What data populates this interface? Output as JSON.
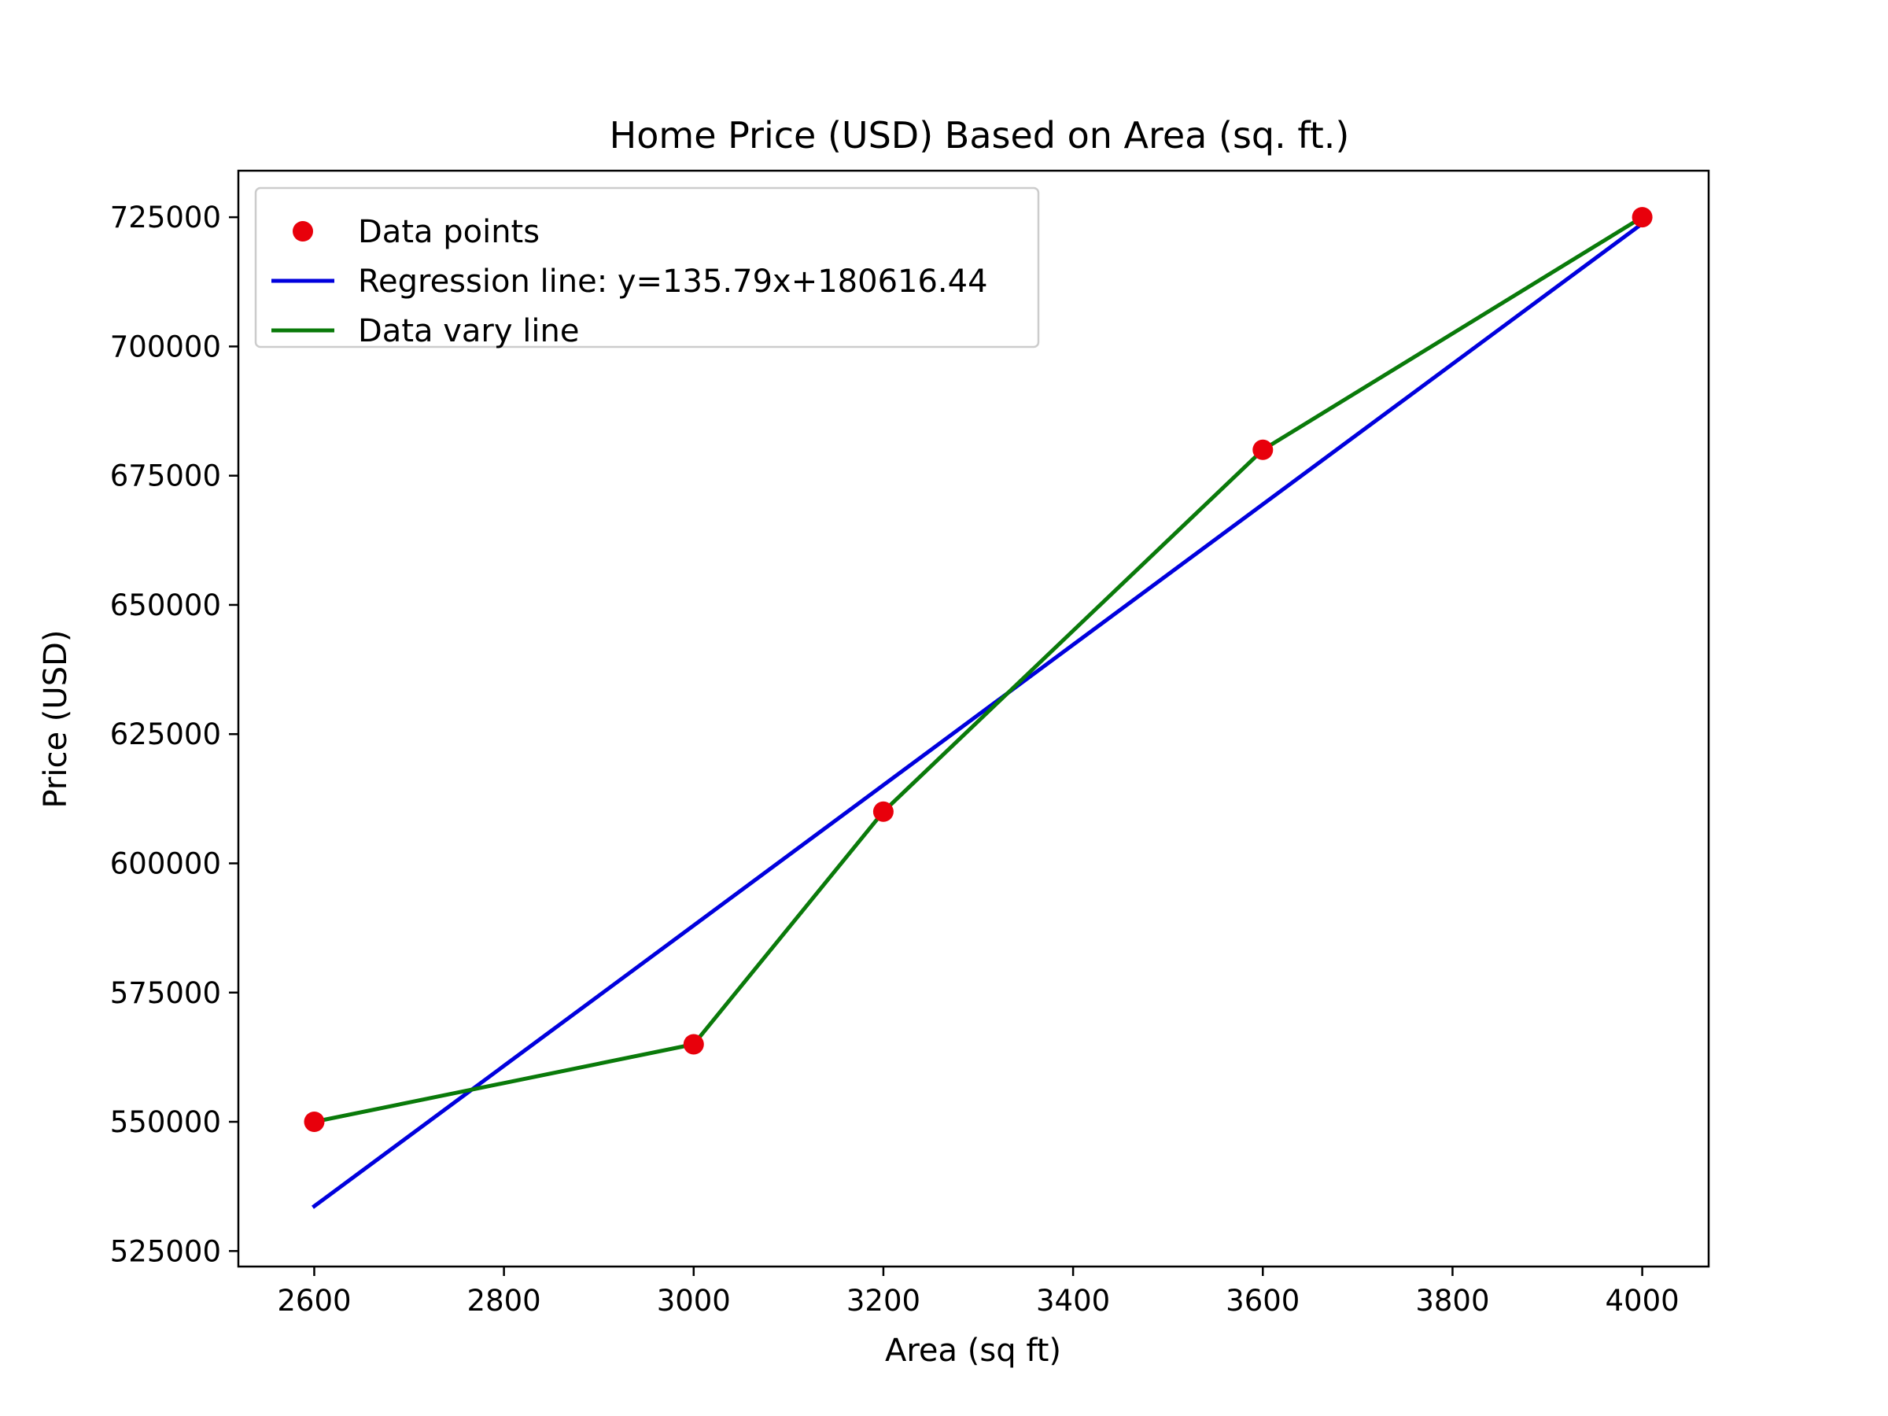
{
  "chart_data": {
    "type": "scatter",
    "title": "Home Price (USD) Based on Area (sq. ft.)",
    "xlabel": "Area (sq ft)",
    "ylabel": "Price (USD)",
    "xlim": [
      2520,
      4070
    ],
    "ylim": [
      522000,
      734000
    ],
    "xticks": [
      2600,
      2800,
      3000,
      3200,
      3400,
      3600,
      3800,
      4000
    ],
    "yticks": [
      525000,
      550000,
      575000,
      600000,
      625000,
      650000,
      675000,
      700000,
      725000
    ],
    "grid": false,
    "legend_position": "upper-left",
    "series": [
      {
        "name": "Data points",
        "kind": "scatter",
        "color": "#e8000b",
        "x": [
          2600,
          3000,
          3200,
          3600,
          4000
        ],
        "y": [
          550000,
          565000,
          610000,
          680000,
          725000
        ]
      },
      {
        "name": "Regression line: y=135.79x+180616.44",
        "kind": "line",
        "color": "#0000dd",
        "x": [
          2600,
          4000
        ],
        "y": [
          533670,
          723776
        ]
      },
      {
        "name": "Data vary line",
        "kind": "line",
        "color": "#0a7a0a",
        "x": [
          2600,
          3000,
          3200,
          3600,
          4000
        ],
        "y": [
          550000,
          565000,
          610000,
          680000,
          725000
        ]
      }
    ]
  }
}
